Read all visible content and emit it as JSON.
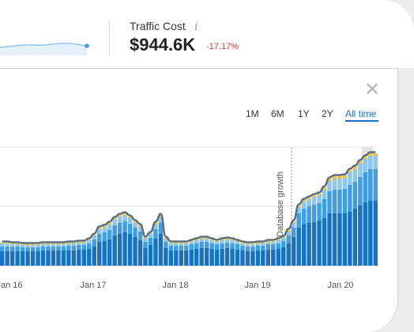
{
  "metric": {
    "label": "Traffic Cost",
    "info_icon": "i",
    "value": "$944.6K",
    "change": "-17.17%",
    "change_color": "#e23b2e"
  },
  "close_icon": "✕",
  "ranges": [
    {
      "label": "1M",
      "active": false
    },
    {
      "label": "6M",
      "active": false
    },
    {
      "label": "1Y",
      "active": false
    },
    {
      "label": "2Y",
      "active": false
    },
    {
      "label": "All time",
      "active": true
    }
  ],
  "chart_data": {
    "type": "bar",
    "stacked": true,
    "x_ticks": [
      "Jan 16",
      "Jan 17",
      "Jan 18",
      "Jan 19",
      "Jan 20"
    ],
    "annotation": "Database growth",
    "series_colors": [
      "#1672c3",
      "#419ee3",
      "#8ec7f0",
      "#f5c342",
      "#5c6d7a"
    ],
    "bars": [
      [
        18,
        6,
        4,
        1
      ],
      [
        18,
        6,
        4,
        1
      ],
      [
        18,
        6,
        3,
        1
      ],
      [
        18,
        6,
        3,
        1
      ],
      [
        18,
        5,
        3,
        1
      ],
      [
        18,
        5,
        3,
        1
      ],
      [
        18,
        5,
        3,
        1
      ],
      [
        18,
        5,
        3,
        1
      ],
      [
        19,
        5,
        3,
        1
      ],
      [
        19,
        5,
        3,
        1
      ],
      [
        19,
        5,
        3,
        1
      ],
      [
        19,
        5,
        3,
        1
      ],
      [
        19,
        5,
        3,
        1
      ],
      [
        19,
        6,
        3,
        1
      ],
      [
        19,
        6,
        3,
        1
      ],
      [
        20,
        6,
        3,
        1
      ],
      [
        20,
        6,
        3,
        1
      ],
      [
        21,
        7,
        4,
        1
      ],
      [
        24,
        9,
        5,
        1
      ],
      [
        30,
        10,
        6,
        2
      ],
      [
        31,
        11,
        6,
        2
      ],
      [
        33,
        12,
        7,
        2
      ],
      [
        38,
        13,
        7,
        2
      ],
      [
        40,
        14,
        8,
        2
      ],
      [
        42,
        14,
        8,
        2
      ],
      [
        40,
        13,
        7,
        2
      ],
      [
        36,
        12,
        6,
        2
      ],
      [
        32,
        11,
        6,
        2
      ],
      [
        22,
        8,
        4,
        1
      ],
      [
        26,
        9,
        5,
        1
      ],
      [
        34,
        12,
        6,
        2
      ],
      [
        40,
        14,
        8,
        2
      ],
      [
        22,
        8,
        4,
        1
      ],
      [
        19,
        6,
        3,
        1
      ],
      [
        19,
        6,
        3,
        1
      ],
      [
        19,
        6,
        3,
        1
      ],
      [
        19,
        6,
        3,
        1
      ],
      [
        20,
        7,
        3,
        1
      ],
      [
        21,
        7,
        4,
        1
      ],
      [
        22,
        8,
        4,
        1
      ],
      [
        22,
        8,
        4,
        1
      ],
      [
        21,
        7,
        4,
        1
      ],
      [
        20,
        7,
        3,
        1
      ],
      [
        21,
        7,
        4,
        1
      ],
      [
        22,
        7,
        4,
        1
      ],
      [
        21,
        7,
        4,
        1
      ],
      [
        20,
        7,
        3,
        1
      ],
      [
        19,
        6,
        3,
        1
      ],
      [
        18,
        6,
        3,
        1
      ],
      [
        18,
        6,
        3,
        1
      ],
      [
        19,
        6,
        3,
        1
      ],
      [
        19,
        6,
        3,
        1
      ],
      [
        20,
        7,
        3,
        1
      ],
      [
        20,
        7,
        3,
        1
      ],
      [
        21,
        7,
        4,
        1
      ],
      [
        23,
        8,
        4,
        1
      ],
      [
        28,
        10,
        5,
        2
      ],
      [
        36,
        12,
        6,
        2
      ],
      [
        48,
        18,
        8,
        2
      ],
      [
        52,
        20,
        9,
        2
      ],
      [
        54,
        21,
        9,
        2
      ],
      [
        55,
        22,
        10,
        2
      ],
      [
        57,
        22,
        10,
        2
      ],
      [
        60,
        24,
        12,
        3
      ],
      [
        66,
        28,
        13,
        3
      ],
      [
        66,
        30,
        14,
        3
      ],
      [
        66,
        30,
        14,
        3
      ],
      [
        66,
        31,
        14,
        3
      ],
      [
        68,
        34,
        16,
        3
      ],
      [
        72,
        34,
        16,
        3
      ],
      [
        76,
        36,
        17,
        3
      ],
      [
        80,
        38,
        17,
        3
      ],
      [
        82,
        40,
        17,
        3
      ],
      [
        82,
        40,
        17,
        3
      ]
    ]
  }
}
